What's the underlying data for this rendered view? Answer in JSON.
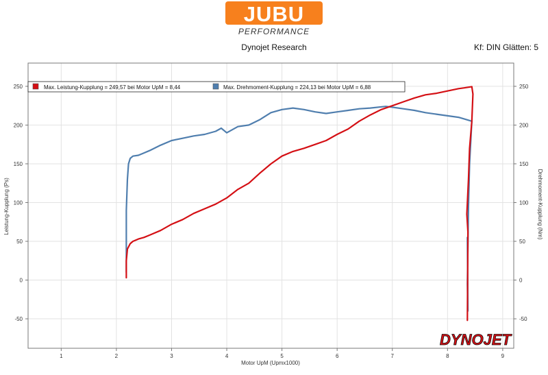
{
  "header": {
    "logo_main": "JUBU",
    "logo_sub": "PERFORMANCE",
    "subtitle": "Dynojet Research",
    "filter_info": "Kf: DIN Glätten: 5"
  },
  "watermark": "DYNOJET",
  "colors": {
    "power": "#d40f14",
    "torque": "#4f7eae",
    "logo_orange": "#f7801d",
    "grid": "#e2e2e2"
  },
  "chart_data": {
    "type": "line",
    "xlabel": "Motor UpM (Upmx1000)",
    "ylabel_left": "Leistung-Kupplung (Ps)",
    "ylabel_right": "Drehmoment-Kupplung (Nm)",
    "xlim": [
      0.4,
      9.2
    ],
    "ylim": [
      -88,
      280
    ],
    "x_ticks": [
      1,
      2,
      3,
      4,
      5,
      6,
      7,
      8,
      9
    ],
    "y_ticks": [
      -50,
      0,
      50,
      100,
      150,
      200,
      250
    ],
    "grid": true,
    "legend_position": "top-left",
    "series": [
      {
        "name": "Max. Leistung-Kupplung = 249,57 bei Motor UpM = 8,44",
        "axis": "left",
        "color": "#d40f14",
        "x": [
          2.18,
          2.18,
          2.2,
          2.25,
          2.3,
          2.4,
          2.5,
          2.6,
          2.8,
          3.0,
          3.2,
          3.4,
          3.6,
          3.8,
          4.0,
          4.2,
          4.4,
          4.6,
          4.8,
          5.0,
          5.2,
          5.4,
          5.6,
          5.8,
          6.0,
          6.2,
          6.4,
          6.6,
          6.8,
          7.0,
          7.2,
          7.4,
          7.6,
          7.8,
          8.0,
          8.2,
          8.3,
          8.44,
          8.46,
          8.44,
          8.4,
          8.38,
          8.36,
          8.35,
          8.37,
          8.36
        ],
        "y": [
          3,
          25,
          40,
          47,
          50,
          53,
          55,
          58,
          64,
          72,
          78,
          86,
          92,
          98,
          106,
          117,
          125,
          138,
          150,
          160,
          166,
          170,
          175,
          180,
          188,
          195,
          205,
          213,
          220,
          225,
          230,
          235,
          239,
          241,
          244,
          247,
          248,
          249.57,
          240,
          205,
          170,
          130,
          100,
          85,
          62,
          -52
        ]
      },
      {
        "name": "Max. Drehmoment-Kupplung = 224,13 bei Motor UpM = 6,88",
        "axis": "right",
        "color": "#4f7eae",
        "x": [
          2.18,
          2.18,
          2.2,
          2.22,
          2.25,
          2.3,
          2.4,
          2.5,
          2.6,
          2.8,
          3.0,
          3.2,
          3.4,
          3.6,
          3.8,
          3.9,
          4.0,
          4.2,
          4.4,
          4.6,
          4.8,
          5.0,
          5.2,
          5.4,
          5.6,
          5.8,
          6.0,
          6.2,
          6.4,
          6.6,
          6.88,
          7.0,
          7.2,
          7.4,
          7.6,
          7.8,
          8.0,
          8.2,
          8.3,
          8.44,
          8.4,
          8.38,
          8.37,
          8.36,
          8.37,
          8.36
        ],
        "y": [
          10,
          90,
          130,
          150,
          157,
          160,
          161,
          164,
          167,
          174,
          180,
          183,
          186,
          188,
          192,
          196,
          190,
          198,
          200,
          207,
          216,
          220,
          222,
          220,
          217,
          215,
          217,
          219,
          221,
          222,
          224.13,
          223,
          221,
          219,
          216,
          214,
          212,
          210,
          208,
          205,
          150,
          95,
          45,
          -5,
          -40,
          55
        ]
      }
    ]
  }
}
